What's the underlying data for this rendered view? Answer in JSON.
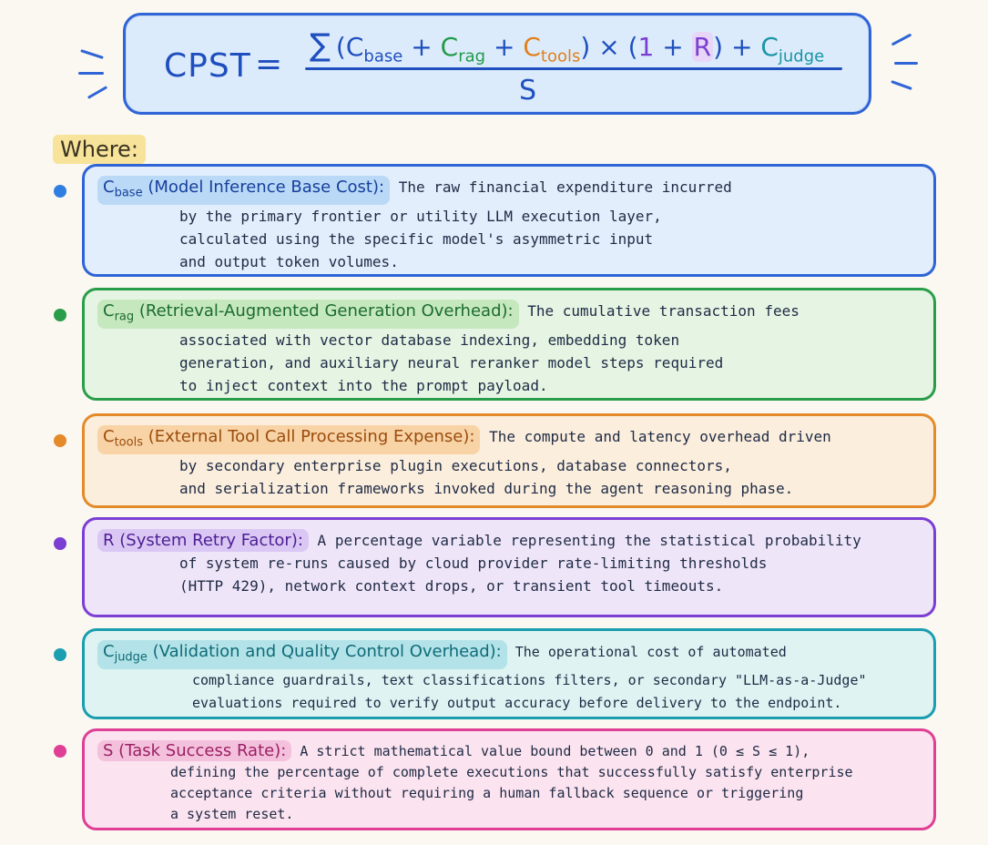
{
  "formula": {
    "lhs": "CPST",
    "equals": "=",
    "sigma": "∑",
    "open_paren": "(",
    "c": "C",
    "base_sub": "base",
    "plus1": "+",
    "rag_sub": "rag",
    "plus2": "+",
    "tools_sub": "tools",
    "close_paren": ")",
    "times": "×",
    "open_paren2": "(",
    "one": "1",
    "plus3": "+",
    "r": "R",
    "close_paren2": ")",
    "plus4": "+",
    "judge_sub": "judge",
    "denominator": "S"
  },
  "where_label": "Where:",
  "colors": {
    "base": "#2f64d6",
    "rag": "#2a9d4b",
    "tools": "#e58a2a",
    "retry": "#7b3fd3",
    "judge": "#1a9eb0",
    "success": "#df3f95"
  },
  "definitions": [
    {
      "symbol": "C",
      "sub": "base",
      "term": "(Model Inference Base Cost):",
      "lines": [
        "The raw financial expenditure incurred",
        "by the primary frontier or utility LLM execution layer,",
        "calculated using the specific model's asymmetric input",
        "and output token volumes."
      ]
    },
    {
      "symbol": "C",
      "sub": "rag",
      "term": "(Retrieval-Augmented Generation Overhead):",
      "lines": [
        "The cumulative transaction fees",
        "associated with vector database indexing, embedding token",
        "generation, and auxiliary neural reranker model steps required",
        "to inject context into the prompt payload."
      ]
    },
    {
      "symbol": "C",
      "sub": "tools",
      "term": "(External Tool Call Processing Expense):",
      "lines": [
        "The compute and latency overhead driven",
        "by secondary enterprise plugin executions, database connectors,",
        "and serialization frameworks invoked during the agent reasoning phase."
      ]
    },
    {
      "symbol": "R",
      "sub": "",
      "term": "(System Retry Factor):",
      "lines": [
        "A percentage variable representing the statistical probability",
        "of system re-runs caused by cloud provider rate-limiting thresholds",
        "(HTTP 429), network context drops, or transient tool timeouts."
      ]
    },
    {
      "symbol": "C",
      "sub": "judge",
      "term": "(Validation and Quality Control Overhead):",
      "lines": [
        "The operational cost of automated",
        "compliance guardrails, text classifications filters, or secondary \"LLM-as-a-Judge\"",
        "evaluations required to verify output accuracy before delivery to the endpoint."
      ]
    },
    {
      "symbol": "S",
      "sub": "",
      "term": "(Task Success Rate):",
      "lines": [
        "A strict mathematical value bound between 0 and 1 (0 ≤ S ≤ 1),",
        "defining the percentage of complete executions that successfully satisfy enterprise",
        "acceptance criteria without requiring a human fallback sequence or triggering",
        "a system reset."
      ]
    }
  ]
}
